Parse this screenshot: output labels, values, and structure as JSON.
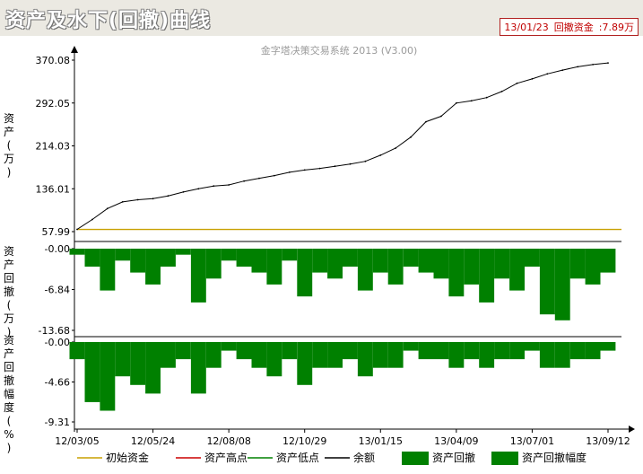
{
  "window": {
    "title": "资产及水下(回撤)曲线",
    "status": {
      "date": "13/01/23",
      "label": "回撤资金",
      "value": "7.89万"
    }
  },
  "chart_data": [
    {
      "type": "line",
      "panel": "equity",
      "watermark": "金字塔决策交易系统 2013 (V3.00)",
      "ylabel": "资产(万)",
      "ylim": [
        57.99,
        370.08
      ],
      "y_ticks": [
        "370.08",
        "292.05",
        "214.03",
        "136.01",
        "57.99"
      ],
      "grid": true,
      "x": [
        "12/03/05",
        "12/03/20",
        "12/04/05",
        "12/04/20",
        "12/05/08",
        "12/05/24",
        "12/06/10",
        "12/06/25",
        "12/07/10",
        "12/07/25",
        "12/08/08",
        "12/08/25",
        "12/09/10",
        "12/09/25",
        "12/10/12",
        "12/10/29",
        "12/11/15",
        "12/11/30",
        "12/12/15",
        "12/12/31",
        "13/01/15",
        "13/01/30",
        "13/02/15",
        "13/03/01",
        "13/03/20",
        "13/04/09",
        "13/04/25",
        "13/05/10",
        "13/05/28",
        "13/06/14",
        "13/07/01",
        "13/07/18",
        "13/08/02",
        "13/08/20",
        "13/09/04",
        "13/09/12"
      ],
      "series": [
        {
          "name": "初始资金",
          "values": [
            62,
            62,
            62,
            62,
            62,
            62,
            62,
            62,
            62,
            62,
            62,
            62,
            62,
            62,
            62,
            62,
            62,
            62,
            62,
            62,
            62,
            62,
            62,
            62,
            62,
            62,
            62,
            62,
            62,
            62,
            62,
            62,
            62,
            62,
            62,
            62
          ]
        },
        {
          "name": "余额",
          "values": [
            62,
            80,
            100,
            112,
            116,
            118,
            123,
            130,
            136,
            141,
            143,
            150,
            155,
            160,
            166,
            170,
            173,
            177,
            181,
            186,
            197,
            210,
            230,
            258,
            268,
            292,
            296,
            302,
            313,
            328,
            336,
            345,
            352,
            358,
            362,
            365
          ]
        }
      ]
    },
    {
      "type": "area",
      "panel": "drawdown",
      "ylabel": "资产回撤(万)",
      "ylim": [
        -13.68,
        0
      ],
      "y_ticks": [
        "-0.00",
        "-6.84",
        "-13.68"
      ],
      "series": [
        {
          "name": "资产回撤",
          "values": [
            -1,
            -3,
            -7,
            -2,
            -4,
            -6,
            -3,
            -1,
            -9,
            -5,
            -2,
            -3,
            -4,
            -6,
            -2,
            -8,
            -4,
            -5,
            -3,
            -7,
            -4,
            -6,
            -3,
            -4,
            -5,
            -8,
            -6,
            -9,
            -5,
            -7,
            -3,
            -11,
            -12,
            -5,
            -6,
            -4
          ]
        }
      ]
    },
    {
      "type": "area",
      "panel": "drawdown_pct",
      "ylabel": "资产回撤幅度(%)",
      "ylim": [
        -9.31,
        0
      ],
      "y_ticks": [
        "-0.00",
        "-4.66",
        "-9.31"
      ],
      "series": [
        {
          "name": "资产回撤幅度",
          "values": [
            -2,
            -7,
            -8,
            -4,
            -5,
            -6,
            -3,
            -2,
            -6,
            -3,
            -1,
            -2,
            -3,
            -4,
            -2,
            -5,
            -3,
            -3,
            -2,
            -4,
            -3,
            -3,
            -1,
            -2,
            -2,
            -3,
            -2,
            -3,
            -2,
            -2,
            -1,
            -3,
            -3,
            -2,
            -2,
            -1
          ]
        }
      ]
    }
  ],
  "x_axis": {
    "tick_labels": [
      "12/03/05",
      "12/05/24",
      "12/08/08",
      "12/10/29",
      "13/01/15",
      "13/04/09",
      "13/07/01",
      "13/09/12"
    ]
  },
  "legend": {
    "items": [
      {
        "label": "初始资金",
        "color": "#c8a000",
        "kind": "line"
      },
      {
        "label": "资产高点",
        "color": "#cc0000",
        "kind": "line"
      },
      {
        "label": "资产低点",
        "color": "#008000",
        "kind": "line"
      },
      {
        "label": "余额",
        "color": "#000000",
        "kind": "line"
      },
      {
        "label": "资产回撤",
        "color": "#008000",
        "kind": "area"
      },
      {
        "label": "资产回撤幅度",
        "color": "#008000",
        "kind": "area"
      }
    ]
  },
  "colors": {
    "area": "#008000",
    "initial": "#c8a000",
    "equity": "#000000",
    "background": "#ebe9e2"
  }
}
